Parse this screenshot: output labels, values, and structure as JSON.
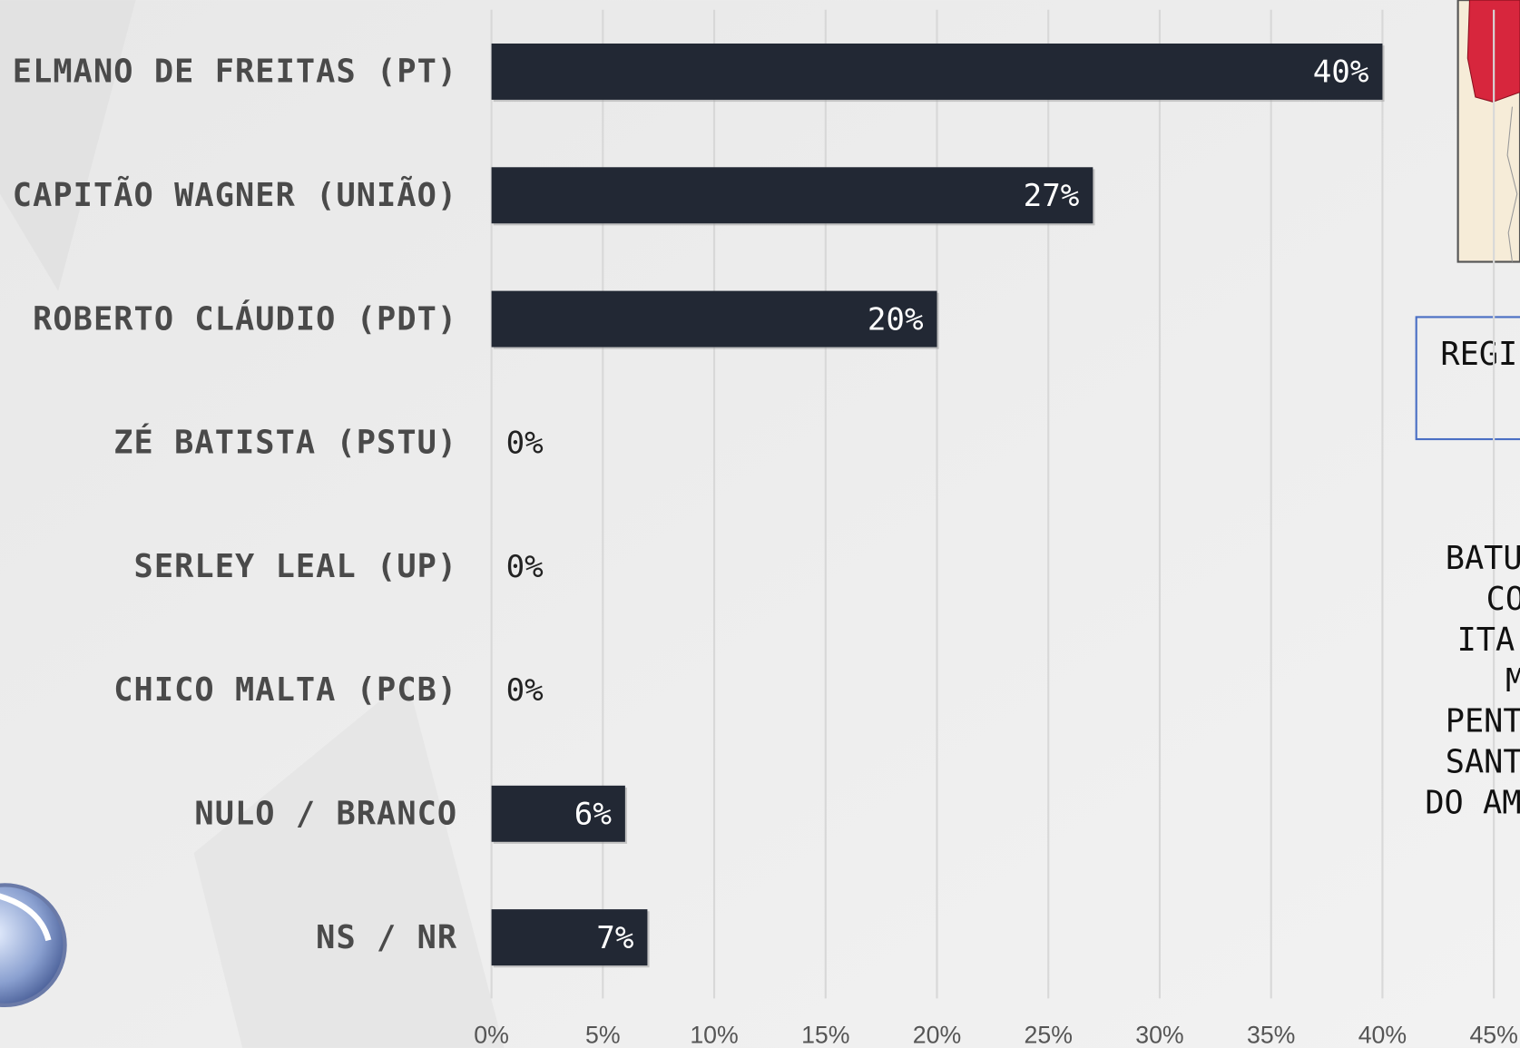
{
  "chart_data": {
    "type": "bar",
    "orientation": "horizontal",
    "categories": [
      "ELMANO DE FREITAS (PT)",
      "CAPITÃO WAGNER (UNIÃO)",
      "ROBERTO CLÁUDIO (PDT)",
      "ZÉ BATISTA (PSTU)",
      "SERLEY LEAL (UP)",
      "CHICO MALTA (PCB)",
      "NULO / BRANCO",
      "NS / NR"
    ],
    "values": [
      40,
      27,
      20,
      0,
      0,
      0,
      6,
      7
    ],
    "value_labels": [
      "40%",
      "27%",
      "20%",
      "0%",
      "0%",
      "0%",
      "6%",
      "7%"
    ],
    "color": "#222834",
    "xlim": [
      0,
      45
    ],
    "xticks": [
      {
        "value": 0,
        "label": "0%"
      },
      {
        "value": 5,
        "label": "5%"
      },
      {
        "value": 10,
        "label": "10%"
      },
      {
        "value": 15,
        "label": "15%"
      },
      {
        "value": 20,
        "label": "20%"
      },
      {
        "value": 25,
        "label": "25%"
      },
      {
        "value": 30,
        "label": "30%"
      },
      {
        "value": 35,
        "label": "35%"
      },
      {
        "value": 40,
        "label": "40%"
      },
      {
        "value": 45,
        "label": "45%"
      }
    ],
    "grid": true
  },
  "side_panel": {
    "box_text": "REGI",
    "lines": [
      "BATU",
      "CO",
      "ITA",
      "M",
      "PENT",
      "SANT",
      "DO AM"
    ]
  }
}
